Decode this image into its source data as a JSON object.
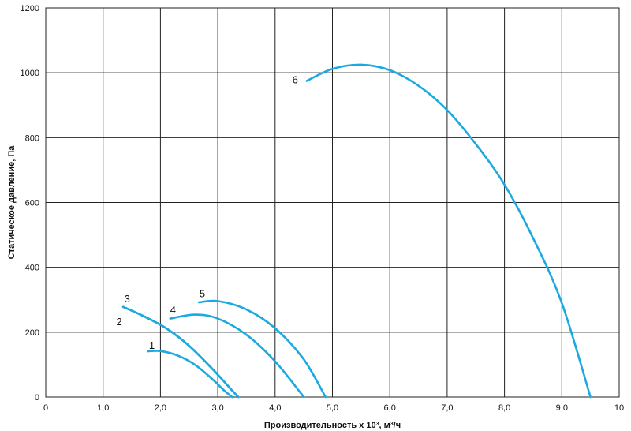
{
  "chart_data": {
    "type": "line",
    "xlabel": "Производительность x 10",
    "xlabel_sup": "3",
    "xlabel_unit": ", м",
    "xlabel_unit_sup": "3",
    "xlabel_tail": "/ч",
    "ylabel": "Статическое давление, Па",
    "xlim": [
      0,
      10
    ],
    "ylim": [
      0,
      1200
    ],
    "x_ticks": [
      {
        "value": 0,
        "label": "0"
      },
      {
        "value": 1,
        "label": "1,0"
      },
      {
        "value": 2,
        "label": "2,0"
      },
      {
        "value": 3,
        "label": "3,0"
      },
      {
        "value": 4,
        "label": "4,0"
      },
      {
        "value": 5,
        "label": "5,0"
      },
      {
        "value": 6,
        "label": "6,0"
      },
      {
        "value": 7,
        "label": "7,0"
      },
      {
        "value": 8,
        "label": "8,0"
      },
      {
        "value": 9,
        "label": "9,0"
      },
      {
        "value": 10,
        "label": "10"
      }
    ],
    "y_ticks": [
      {
        "value": 0,
        "label": "0"
      },
      {
        "value": 200,
        "label": "200"
      },
      {
        "value": 400,
        "label": "400"
      },
      {
        "value": 600,
        "label": "600"
      },
      {
        "value": 800,
        "label": "800"
      },
      {
        "value": 1000,
        "label": "1000"
      },
      {
        "value": 1200,
        "label": "1200"
      }
    ],
    "grid": true,
    "line_color": "#1ba9e1",
    "series": [
      {
        "name": "1",
        "x": [
          1.78,
          2.0,
          2.3,
          2.6,
          2.9,
          3.1,
          3.25
        ],
        "y": [
          141,
          142,
          128,
          100,
          56,
          22,
          0
        ]
      },
      {
        "name": "2",
        "x": [
          1.35,
          1.7,
          2.1,
          2.5,
          2.9,
          3.2,
          3.36
        ],
        "y": [
          278,
          250,
          212,
          158,
          88,
          30,
          0
        ]
      },
      {
        "name": "3",
        "x": [
          1.35,
          1.7,
          2.1,
          2.5,
          2.9,
          3.2,
          3.36
        ],
        "y": [
          278,
          250,
          212,
          158,
          88,
          30,
          0
        ]
      },
      {
        "name": "4",
        "x": [
          2.17,
          2.6,
          3.0,
          3.5,
          4.0,
          4.5
        ],
        "y": [
          242,
          254,
          242,
          192,
          110,
          0
        ]
      },
      {
        "name": "5",
        "x": [
          2.67,
          3.0,
          3.5,
          4.0,
          4.5,
          4.88
        ],
        "y": [
          292,
          296,
          270,
          212,
          116,
          0
        ]
      },
      {
        "name": "6",
        "x": [
          4.55,
          5.0,
          5.5,
          6.0,
          6.5,
          7.0,
          7.5,
          8.0,
          8.5,
          9.0,
          9.5
        ],
        "y": [
          975,
          1012,
          1025,
          1008,
          960,
          885,
          780,
          655,
          490,
          290,
          0
        ]
      }
    ],
    "curve_labels": [
      {
        "series": "1",
        "text": "1",
        "x": 1.85,
        "y": 148
      },
      {
        "series": "2",
        "text": "2",
        "x": 1.28,
        "y": 222
      },
      {
        "series": "3",
        "text": "3",
        "x": 1.42,
        "y": 292
      },
      {
        "series": "4",
        "text": "4",
        "x": 2.22,
        "y": 258
      },
      {
        "series": "5",
        "text": "5",
        "x": 2.73,
        "y": 308
      },
      {
        "series": "6",
        "text": "6",
        "x": 4.35,
        "y": 968
      }
    ]
  }
}
